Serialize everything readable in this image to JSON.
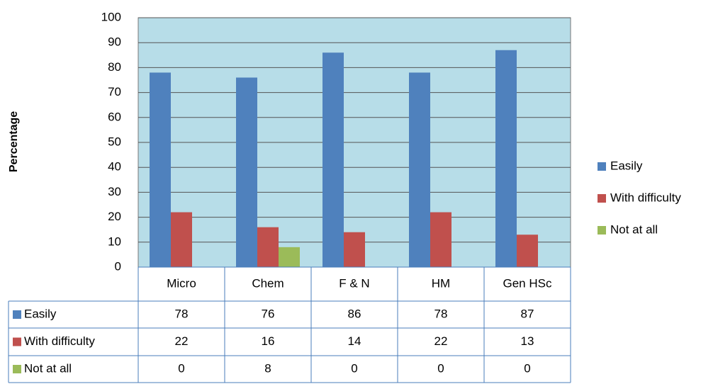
{
  "chart_data": {
    "type": "bar",
    "y_label": "Percentage",
    "categories": [
      "Micro",
      "Chem",
      "F & N",
      "HM",
      "Gen HSc"
    ],
    "series": [
      {
        "name": "Easily",
        "color": "#4f81bd",
        "values": [
          78,
          76,
          86,
          78,
          87
        ]
      },
      {
        "name": "With difficulty",
        "color": "#c0504d",
        "values": [
          22,
          16,
          14,
          22,
          13
        ]
      },
      {
        "name": "Not at all",
        "color": "#9bbb59",
        "values": [
          0,
          8,
          0,
          0,
          0
        ]
      }
    ],
    "ylim": [
      0,
      100
    ],
    "yticks": [
      0,
      10,
      20,
      30,
      40,
      50,
      60,
      70,
      80,
      90,
      100
    ],
    "grid": true,
    "plot_background": "#b7dde8",
    "legend": "right",
    "data_table": true
  }
}
